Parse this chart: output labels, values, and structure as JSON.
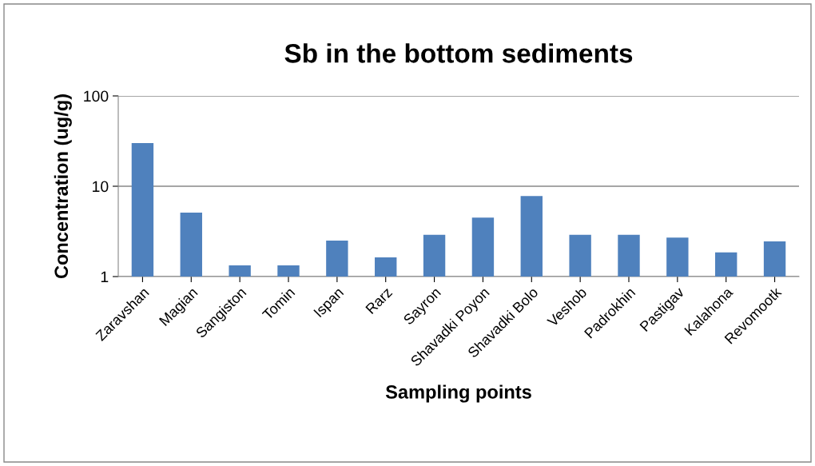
{
  "chart_data": {
    "type": "bar",
    "title": "Sb in the bottom sediments",
    "xlabel": "Sampling points",
    "ylabel": "Concentration (ug/g)",
    "categories": [
      "Zaravshan",
      "Magian",
      "Sangiston",
      "Tomin",
      "Ispan",
      "Rarz",
      "Sayron",
      "Shavadki Poyon",
      "Shavadki Bolo",
      "Veshob",
      "Padrokhin",
      "Pastigav",
      "Kalahona",
      "Revomootk"
    ],
    "values": [
      30,
      5.1,
      1.33,
      1.33,
      2.5,
      1.63,
      2.9,
      4.5,
      7.8,
      2.9,
      2.9,
      2.7,
      1.85,
      2.45
    ],
    "color": "#4f81bd",
    "log": true,
    "ylim": [
      1,
      100
    ],
    "yticks": [
      1,
      10,
      100
    ],
    "grid": "y",
    "legend": false
  }
}
